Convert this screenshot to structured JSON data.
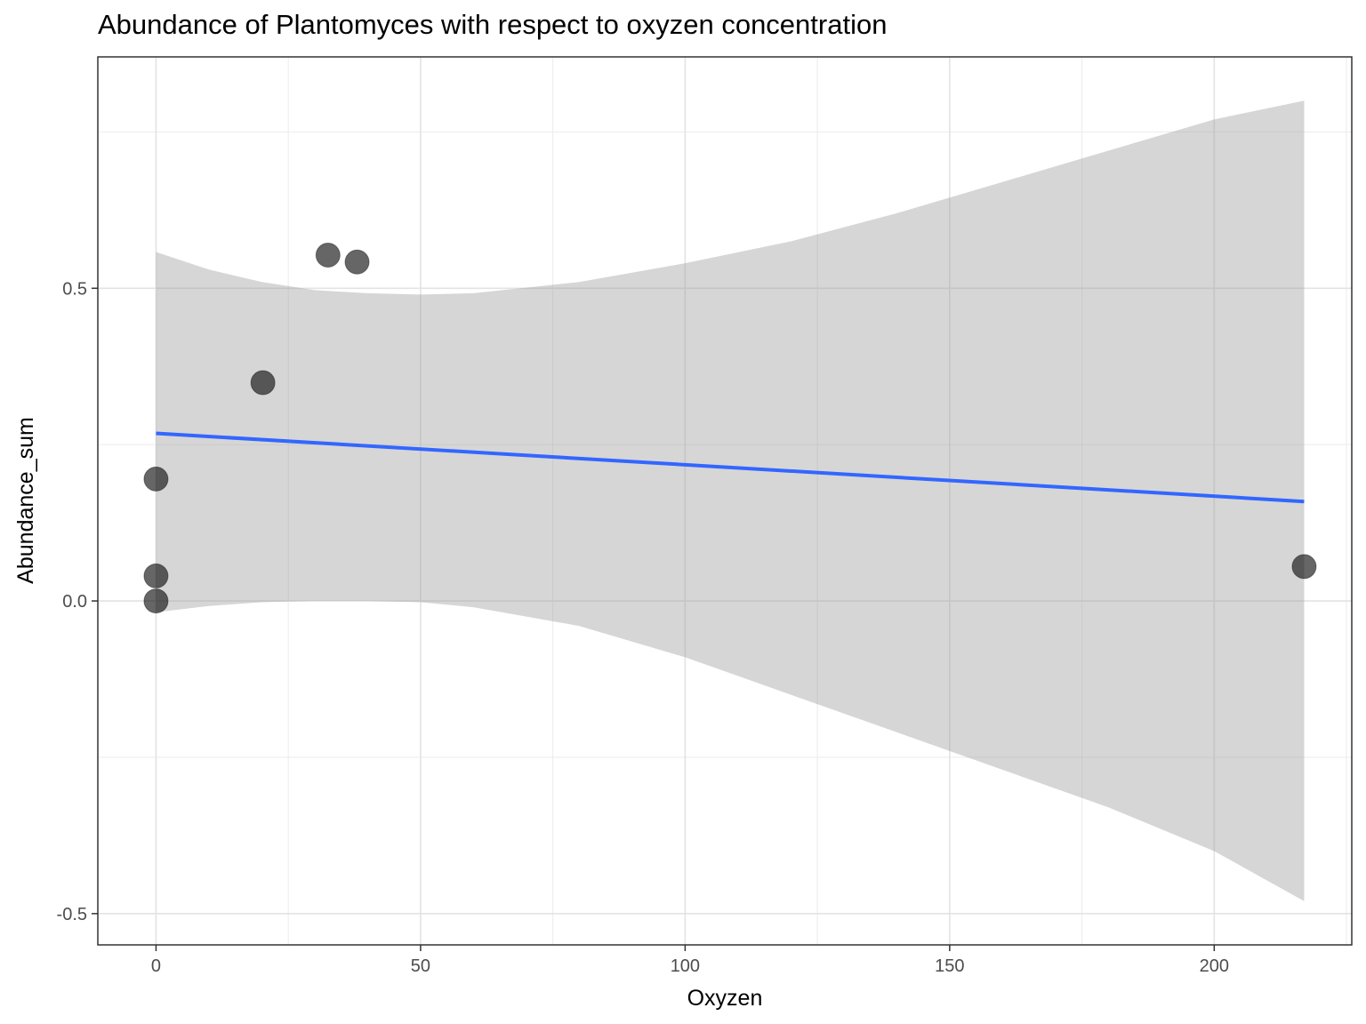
{
  "chart_data": {
    "type": "scatter",
    "title": "Abundance of Plantomyces with respect to oxyzen concentration",
    "xlabel": "Oxyzen",
    "ylabel": "Abundance_sum",
    "xlim": [
      -11,
      226
    ],
    "ylim": [
      -0.55,
      0.87
    ],
    "x_major_ticks": [
      0,
      50,
      100,
      150,
      200
    ],
    "x_minor_ticks": [
      25,
      75,
      125,
      175,
      225
    ],
    "y_major_ticks": [
      -0.5,
      0.0,
      0.5
    ],
    "y_minor_ticks": [
      -0.25,
      0.25,
      0.75
    ],
    "x_tick_labels": [
      "0",
      "50",
      "100",
      "150",
      "200"
    ],
    "y_tick_labels": [
      "-0.5",
      "0.0",
      "0.5"
    ],
    "grid": true,
    "points": [
      {
        "x": 0,
        "y": 0.195
      },
      {
        "x": 0,
        "y": 0.04
      },
      {
        "x": 0,
        "y": 0.0
      },
      {
        "x": 20.2,
        "y": 0.349
      },
      {
        "x": 32.5,
        "y": 0.553
      },
      {
        "x": 38,
        "y": 0.542
      },
      {
        "x": 217,
        "y": 0.055
      }
    ],
    "fit_line": {
      "method": "linear",
      "x": [
        0,
        217
      ],
      "y": [
        0.268,
        0.159
      ],
      "color": "#3366FF"
    },
    "confidence_band": {
      "color": "#999999",
      "x": [
        0,
        10,
        20,
        30,
        40,
        50,
        60,
        80,
        100,
        120,
        140,
        160,
        180,
        200,
        217
      ],
      "lower": [
        -0.018,
        -0.008,
        -0.002,
        0.0,
        0.0,
        -0.002,
        -0.01,
        -0.04,
        -0.09,
        -0.15,
        -0.21,
        -0.27,
        -0.33,
        -0.4,
        -0.48
      ],
      "upper": [
        0.558,
        0.53,
        0.51,
        0.497,
        0.492,
        0.49,
        0.492,
        0.51,
        0.54,
        0.575,
        0.62,
        0.67,
        0.72,
        0.77,
        0.8
      ]
    }
  }
}
